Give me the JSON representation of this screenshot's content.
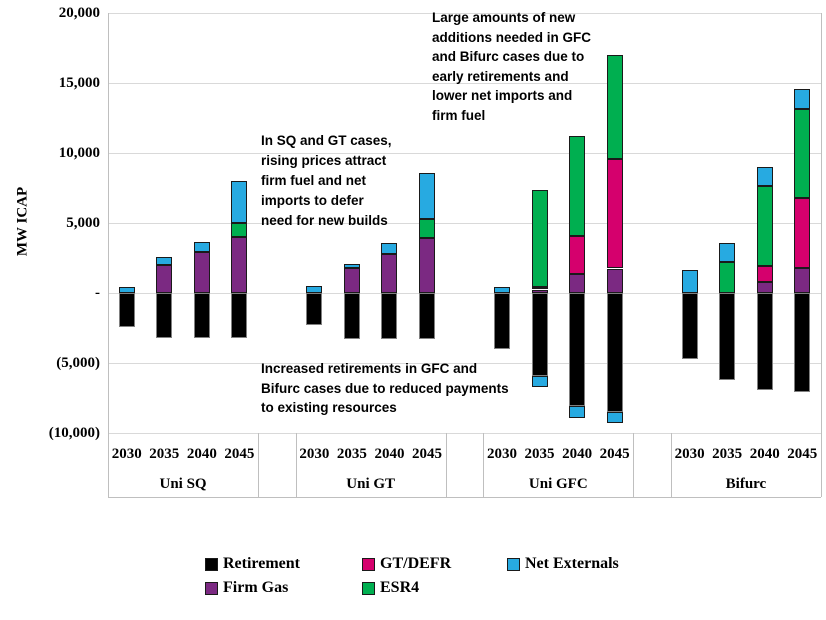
{
  "chart_data": {
    "type": "bar",
    "stacked": true,
    "title": "",
    "ylabel": "MW ICAP",
    "xlabel": "",
    "ylim": [
      -10000,
      20000
    ],
    "ytick_step": 5000,
    "ytick_labels": [
      "20,000",
      "15,000",
      "10,000",
      "5,000",
      "-",
      "(5,000)",
      "(10,000)"
    ],
    "grid": true,
    "legend_position": "bottom",
    "groups": [
      {
        "label": "Uni SQ",
        "years": [
          "2030",
          "2035",
          "2040",
          "2045"
        ]
      },
      {
        "label": "Uni GT",
        "years": [
          "2030",
          "2035",
          "2040",
          "2045"
        ]
      },
      {
        "label": "Uni GFC",
        "years": [
          "2030",
          "2035",
          "2040",
          "2045"
        ]
      },
      {
        "label": "Bifurc",
        "years": [
          "2030",
          "2035",
          "2040",
          "2045"
        ]
      }
    ],
    "series": [
      {
        "key": "retirement",
        "name": "Retirement",
        "color": "#000000",
        "values": [
          -2400,
          -3200,
          -3200,
          -3200,
          -2300,
          -3300,
          -3300,
          -3300,
          -4000,
          -5900,
          -8100,
          -8500,
          -4700,
          -6200,
          -6900,
          -7100
        ]
      },
      {
        "key": "firm_gas",
        "name": "Firm Gas",
        "color": "#7B2982",
        "values": [
          0,
          2000,
          2900,
          4000,
          0,
          1800,
          2800,
          3950,
          0,
          250,
          1350,
          1750,
          0,
          0,
          800,
          1800
        ]
      },
      {
        "key": "gt_defr",
        "name": "GT/DEFR",
        "color": "#D5006D",
        "values": [
          0,
          0,
          0,
          0,
          0,
          0,
          0,
          0,
          0,
          150,
          2750,
          7850,
          0,
          0,
          1150,
          5000
        ]
      },
      {
        "key": "esr4",
        "name": "ESR4",
        "color": "#00AF50",
        "values": [
          0,
          0,
          0,
          1000,
          0,
          0,
          0,
          1350,
          0,
          6950,
          7100,
          7400,
          0,
          2200,
          5700,
          6350
        ]
      },
      {
        "key": "net_externals",
        "name": "Net Externals",
        "color": "#27AAE1",
        "values": [
          400,
          600,
          750,
          3000,
          500,
          250,
          800,
          3300,
          400,
          -800,
          -800,
          -800,
          1650,
          1350,
          1350,
          1400
        ]
      }
    ],
    "stack_order_positive": [
      "firm_gas",
      "gt_defr",
      "esr4",
      "net_externals"
    ],
    "stack_order_negative": [
      "retirement",
      "net_externals"
    ]
  },
  "annotations": [
    {
      "id": "sq-gt-note",
      "text": "In SQ and GT cases,\nrising prices attract\nfirm fuel and net\nimports to defer\nneed for new builds"
    },
    {
      "id": "gfc-additions-note",
      "text": "Large amounts of new\nadditions needed in GFC\nand Bifurc cases due to\nearly retirements and\nlower net imports and\nfirm fuel"
    },
    {
      "id": "retirements-note",
      "text": "Increased retirements in GFC and\nBifurc cases due to reduced payments\nto existing resources"
    }
  ],
  "legend": {
    "rows": [
      [
        {
          "label": "Retirement",
          "color": "#000000"
        },
        {
          "label": "GT/DEFR",
          "color": "#D5006D"
        },
        {
          "label": "Net Externals",
          "color": "#27AAE1"
        }
      ],
      [
        {
          "label": "Firm Gas",
          "color": "#7B2982"
        },
        {
          "label": "ESR4",
          "color": "#00AF50"
        }
      ]
    ]
  },
  "colors": {
    "gridline": "#d9d9d9",
    "axis_line": "#bfbfbf",
    "segment_border": "#1a1a1a",
    "retirement_border": "#808080"
  }
}
